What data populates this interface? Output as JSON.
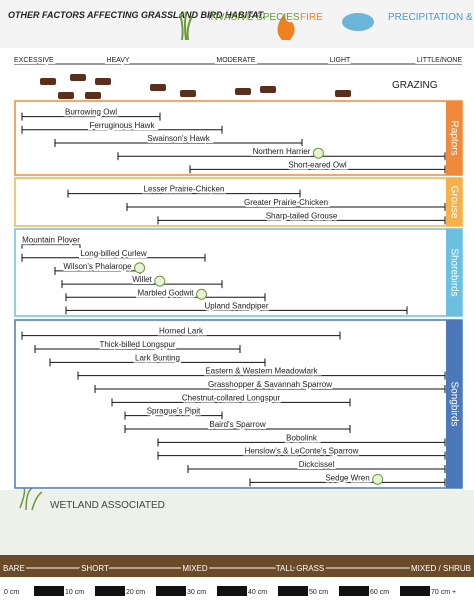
{
  "header": {
    "title": "OTHER FACTORS AFFECTING GRASSLAND BIRD HABITAT:",
    "factors": [
      "INVASIVE SPECIES",
      "FIRE",
      "PRECIPITATION & CLIMATE"
    ]
  },
  "grazing": {
    "levels": [
      "EXCESSIVE",
      "HEAVY",
      "MODERATE",
      "LIGHT",
      "LITTLE/NONE"
    ],
    "label": "GRAZING"
  },
  "groups": [
    {
      "name": "Raptors",
      "birds": [
        "Burrowing Owl",
        "Ferruginous Hawk",
        "Swainson's Hawk",
        "Northern Harrier",
        "Short-eared Owl"
      ]
    },
    {
      "name": "Grouse",
      "birds": [
        "Lesser Prairie-Chicken",
        "Greater Prairie-Chicken",
        "Sharp-tailed Grouse"
      ]
    },
    {
      "name": "Shorebirds",
      "birds": [
        "Mountain Plover",
        "Long-billed Curlew",
        "Wilson's Phalarope",
        "Willet",
        "Marbled Godwit",
        "Upland Sandpiper"
      ]
    },
    {
      "name": "Songbirds",
      "birds": [
        "Horned Lark",
        "Thick-billed Longspur",
        "Lark Bunting",
        "Eastern & Western Meadowlark",
        "Grasshopper & Savannah Sparrow",
        "Chestnut-collared Longspur",
        "Sprague's Pipit",
        "Baird's Sparrow",
        "Bobolink",
        "Henslow's & LeConte's Sparrow",
        "Dickcissel",
        "Sedge Wren"
      ]
    }
  ],
  "wetland": "WETLAND ASSOCIATED",
  "height_scale": {
    "levels": [
      "BARE",
      "SHORT",
      "MIXED",
      "TALL GRASS",
      "MIXED / SHRUB"
    ],
    "marks": [
      "0 cm",
      "10 cm",
      "20 cm",
      "30 cm",
      "40 cm",
      "50 cm",
      "60 cm",
      "70 cm +"
    ]
  }
}
